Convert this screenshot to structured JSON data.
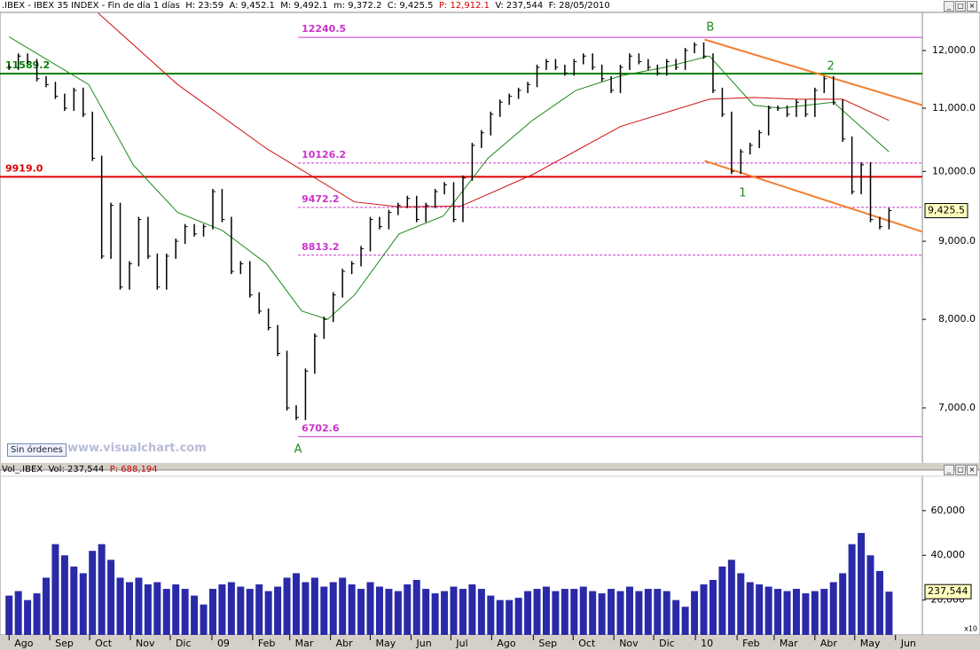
{
  "header": {
    "symbol": ".IBEX - IBEX 35 INDEX - Fin de día 1 días",
    "time": "H: 23:59",
    "open": "A: 9,452.1",
    "high": "M: 9,492.1",
    "low": "m: 9,372.2",
    "close": "C: 9,425.5",
    "prev": "P: 12,912.1",
    "volume": "V: 237,544",
    "date": "F: 28/05/2010"
  },
  "buttons": {
    "orders": "Sin órdenes",
    "watermark": "www.visualchart.com"
  },
  "chart_data": [
    {
      "type": "ohlc",
      "name": "IBEX 35",
      "xlim": [
        -0.5,
        98.6
      ],
      "ylim": [
        6460,
        12710
      ],
      "log_scale": true,
      "grid": false,
      "xticks": [
        {
          "value": 0,
          "label": "Ago"
        },
        {
          "value": 4.4,
          "label": "Sep"
        },
        {
          "value": 8.7,
          "label": "Oct"
        },
        {
          "value": 13.1,
          "label": "Nov"
        },
        {
          "value": 17.4,
          "label": "Dic"
        },
        {
          "value": 21.9,
          "label": "09"
        },
        {
          "value": 26.3,
          "label": "Feb"
        },
        {
          "value": 30.3,
          "label": "Mar"
        },
        {
          "value": 34.7,
          "label": "Abr"
        },
        {
          "value": 39,
          "label": "May"
        },
        {
          "value": 43.4,
          "label": "Jun"
        },
        {
          "value": 47.7,
          "label": "Jul"
        },
        {
          "value": 52.1,
          "label": "Ago"
        },
        {
          "value": 56.6,
          "label": "Sep"
        },
        {
          "value": 60.9,
          "label": "Oct"
        },
        {
          "value": 65.3,
          "label": "Nov"
        },
        {
          "value": 69.6,
          "label": "Dic"
        },
        {
          "value": 74.1,
          "label": "10"
        },
        {
          "value": 78.6,
          "label": "Feb"
        },
        {
          "value": 82.6,
          "label": "Mar"
        },
        {
          "value": 87,
          "label": "Abr"
        },
        {
          "value": 91.3,
          "label": "May"
        },
        {
          "value": 95.7,
          "label": "Jun"
        }
      ],
      "yticks": [
        {
          "value": 7000,
          "label": "7,000.0"
        },
        {
          "value": 8000,
          "label": "8,000.0"
        },
        {
          "value": 9000,
          "label": "9,000.0"
        },
        {
          "value": 10000,
          "label": "10,000.0"
        },
        {
          "value": 11000,
          "label": "11,000.0"
        },
        {
          "value": 12000,
          "label": "12,000.0"
        }
      ],
      "color": "#000000",
      "values": [
        11700,
        11900,
        11800,
        11500,
        11400,
        11200,
        11000,
        11300,
        10900,
        10200,
        8800,
        9500,
        8400,
        8700,
        9300,
        8800,
        8400,
        8800,
        9000,
        9200,
        9100,
        9200,
        9700,
        9300,
        8600,
        8700,
        8300,
        8100,
        7900,
        7600,
        7000,
        6900,
        7400,
        7800,
        8000,
        8300,
        8600,
        8700,
        8900,
        9300,
        9200,
        9400,
        9500,
        9600,
        9300,
        9500,
        9700,
        9800,
        9300,
        9900,
        10400,
        10600,
        10900,
        11100,
        11200,
        11300,
        11400,
        11700,
        11800,
        11700,
        11600,
        11800,
        11900,
        11700,
        11500,
        11300,
        11700,
        11900,
        11800,
        11700,
        11600,
        11800,
        11700,
        12000,
        12100,
        11900,
        11300,
        10900,
        10000,
        10300,
        10400,
        10600,
        11000,
        11000,
        10900,
        11100,
        10900,
        11300,
        11500,
        11100,
        10500,
        9700,
        10100,
        9300,
        9200,
        9425.5
      ],
      "last_value_label": "9,425.5",
      "averages": [
        {
          "color": "#1a8a1a",
          "x": [
            0,
            8.6,
            13.4,
            18.2,
            23,
            27.8,
            31.6,
            34.4,
            37.3,
            42.1,
            46.9,
            51.7,
            56.5,
            61.2,
            66,
            70.8,
            75.6,
            80.4,
            83.3,
            89,
            95
          ],
          "values": [
            12250,
            11400,
            10100,
            9400,
            9150,
            8700,
            8100,
            8000,
            8300,
            9100,
            9350,
            10200,
            10800,
            11300,
            11550,
            11700,
            11900,
            11050,
            11000,
            11100,
            10300
          ]
        },
        {
          "color": "#cc1111",
          "x": [
            9.6,
            18.2,
            27.8,
            37.3,
            42.1,
            48.8,
            56.5,
            66,
            75.6,
            80.4,
            85.2,
            90,
            95
          ],
          "values": [
            12700,
            11400,
            10350,
            9550,
            9480,
            9490,
            9950,
            10700,
            11150,
            11180,
            11150,
            11150,
            10800
          ]
        }
      ],
      "levels": [
        {
          "value": 12240.5,
          "label": "12240.5",
          "color": "#cc33cc",
          "dashed": false
        },
        {
          "value": 11589.2,
          "label": "11589.2",
          "color": "#008000",
          "dashed": false
        },
        {
          "value": 10126.2,
          "label": "10126.2",
          "color": "#cc33cc",
          "dashed": true
        },
        {
          "value": 9919.0,
          "label": "9919.0",
          "color": "#dd0000",
          "dashed": false
        },
        {
          "value": 9472.2,
          "label": "9472.2",
          "color": "#cc33cc",
          "dashed": true
        },
        {
          "value": 8813.2,
          "label": "8813.2",
          "color": "#cc33cc",
          "dashed": true
        },
        {
          "value": 6702.6,
          "label": "6702.6",
          "color": "#cc33cc",
          "dashed": false
        }
      ],
      "trendlines": [
        {
          "color": "#f08030",
          "x": [
            75.1,
            98.6
          ],
          "values": [
            12200,
            11050
          ]
        },
        {
          "color": "#f08030",
          "x": [
            75.1,
            98.6
          ],
          "values": [
            10160,
            9130
          ]
        }
      ],
      "annotations": [
        "A",
        "B",
        "1",
        "2"
      ]
    },
    {
      "type": "bar",
      "title": "Vol_.IBEX",
      "subtitle": "Vol: 237,544",
      "note": "P: 688,194",
      "scale_label": "x10",
      "last_value_label": "237,544",
      "xlim": [
        -0.5,
        98.6
      ],
      "ylim": [
        4400,
        75400
      ],
      "color": "#2a2aa8",
      "yticks": [
        {
          "value": 20000,
          "label": "20,000"
        },
        {
          "value": 40000,
          "label": "40,000"
        },
        {
          "value": 60000,
          "label": "60,000"
        }
      ],
      "values": [
        22000,
        24000,
        20000,
        23000,
        30000,
        45000,
        40000,
        35000,
        32000,
        42000,
        45000,
        38000,
        30000,
        28000,
        30000,
        27000,
        28000,
        25000,
        27000,
        25000,
        22000,
        18000,
        25000,
        27000,
        28000,
        26000,
        25000,
        27000,
        24000,
        26000,
        30000,
        32000,
        28000,
        30000,
        26000,
        28000,
        30000,
        27000,
        25000,
        28000,
        26000,
        25000,
        24000,
        27000,
        29000,
        25000,
        23000,
        24000,
        26000,
        25000,
        27000,
        25000,
        22000,
        20000,
        20000,
        21000,
        24000,
        25000,
        26000,
        24000,
        25000,
        25000,
        26000,
        24000,
        23000,
        25000,
        24000,
        26000,
        24000,
        25000,
        25000,
        24000,
        20000,
        17000,
        24000,
        27000,
        29000,
        35000,
        38000,
        32000,
        28000,
        27000,
        26000,
        25000,
        24000,
        25000,
        23000,
        24000,
        25000,
        28000,
        32000,
        45000,
        50000,
        40000,
        33000,
        23754.4
      ]
    }
  ]
}
